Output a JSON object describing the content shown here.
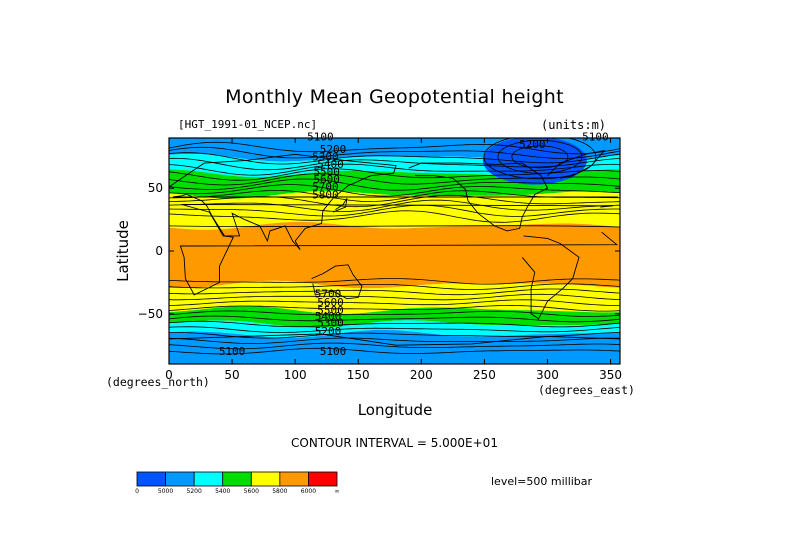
{
  "chart_data": {
    "type": "heatmap",
    "title": "Monthly Mean Geopotential height",
    "subtitle": "[HGT_1991-01_NCEP.nc]",
    "units_label": "(units:m)",
    "xlabel": "Longitude",
    "ylabel": "Latitude",
    "x_units_label": "(degrees_east)",
    "y_units_label": "(degrees_north)",
    "xlim": [
      0,
      357.5
    ],
    "ylim": [
      -90,
      90
    ],
    "x_ticks": [
      0,
      50,
      100,
      150,
      200,
      250,
      300,
      350
    ],
    "y_ticks": [
      -50,
      0,
      50
    ],
    "contour_interval_text": "CONTOUR INTERVAL = 5.000E+01",
    "level_text": "level=500 millibar",
    "contour_labels": [
      "5100",
      "5200",
      "5100",
      "5200",
      "5300",
      "5400",
      "5500",
      "5600",
      "5700",
      "5800",
      "5100",
      "5100",
      "5200",
      "5300",
      "5400",
      "5500",
      "5600",
      "5700"
    ],
    "colorbar": {
      "labels": [
        "0",
        "5000",
        "5200",
        "5400",
        "5600",
        "5800",
        "6000",
        "∞"
      ],
      "colors": [
        "#0055ff",
        "#0099ff",
        "#00ffff",
        "#00dd00",
        "#ffff00",
        "#ff9900",
        "#ff0000"
      ]
    },
    "color_bands": [
      {
        "lat_from": 90,
        "lat_to": 74,
        "color": "#0099ff"
      },
      {
        "lat_from": 74,
        "lat_to": 62,
        "color": "#00ffff"
      },
      {
        "lat_from": 62,
        "lat_to": 45,
        "color": "#00dd00"
      },
      {
        "lat_from": 45,
        "lat_to": 20,
        "color": "#ffff00"
      },
      {
        "lat_from": 20,
        "lat_to": -27,
        "color": "#ff9900"
      },
      {
        "lat_from": -27,
        "lat_to": -47,
        "color": "#ffff00"
      },
      {
        "lat_from": -47,
        "lat_to": -58,
        "color": "#00dd00"
      },
      {
        "lat_from": -58,
        "lat_to": -66,
        "color": "#00ffff"
      },
      {
        "lat_from": -66,
        "lat_to": -90,
        "color": "#0099ff"
      }
    ],
    "low_region": {
      "lon_center": 290,
      "lat_center": 72,
      "color": "#0055ff"
    }
  }
}
